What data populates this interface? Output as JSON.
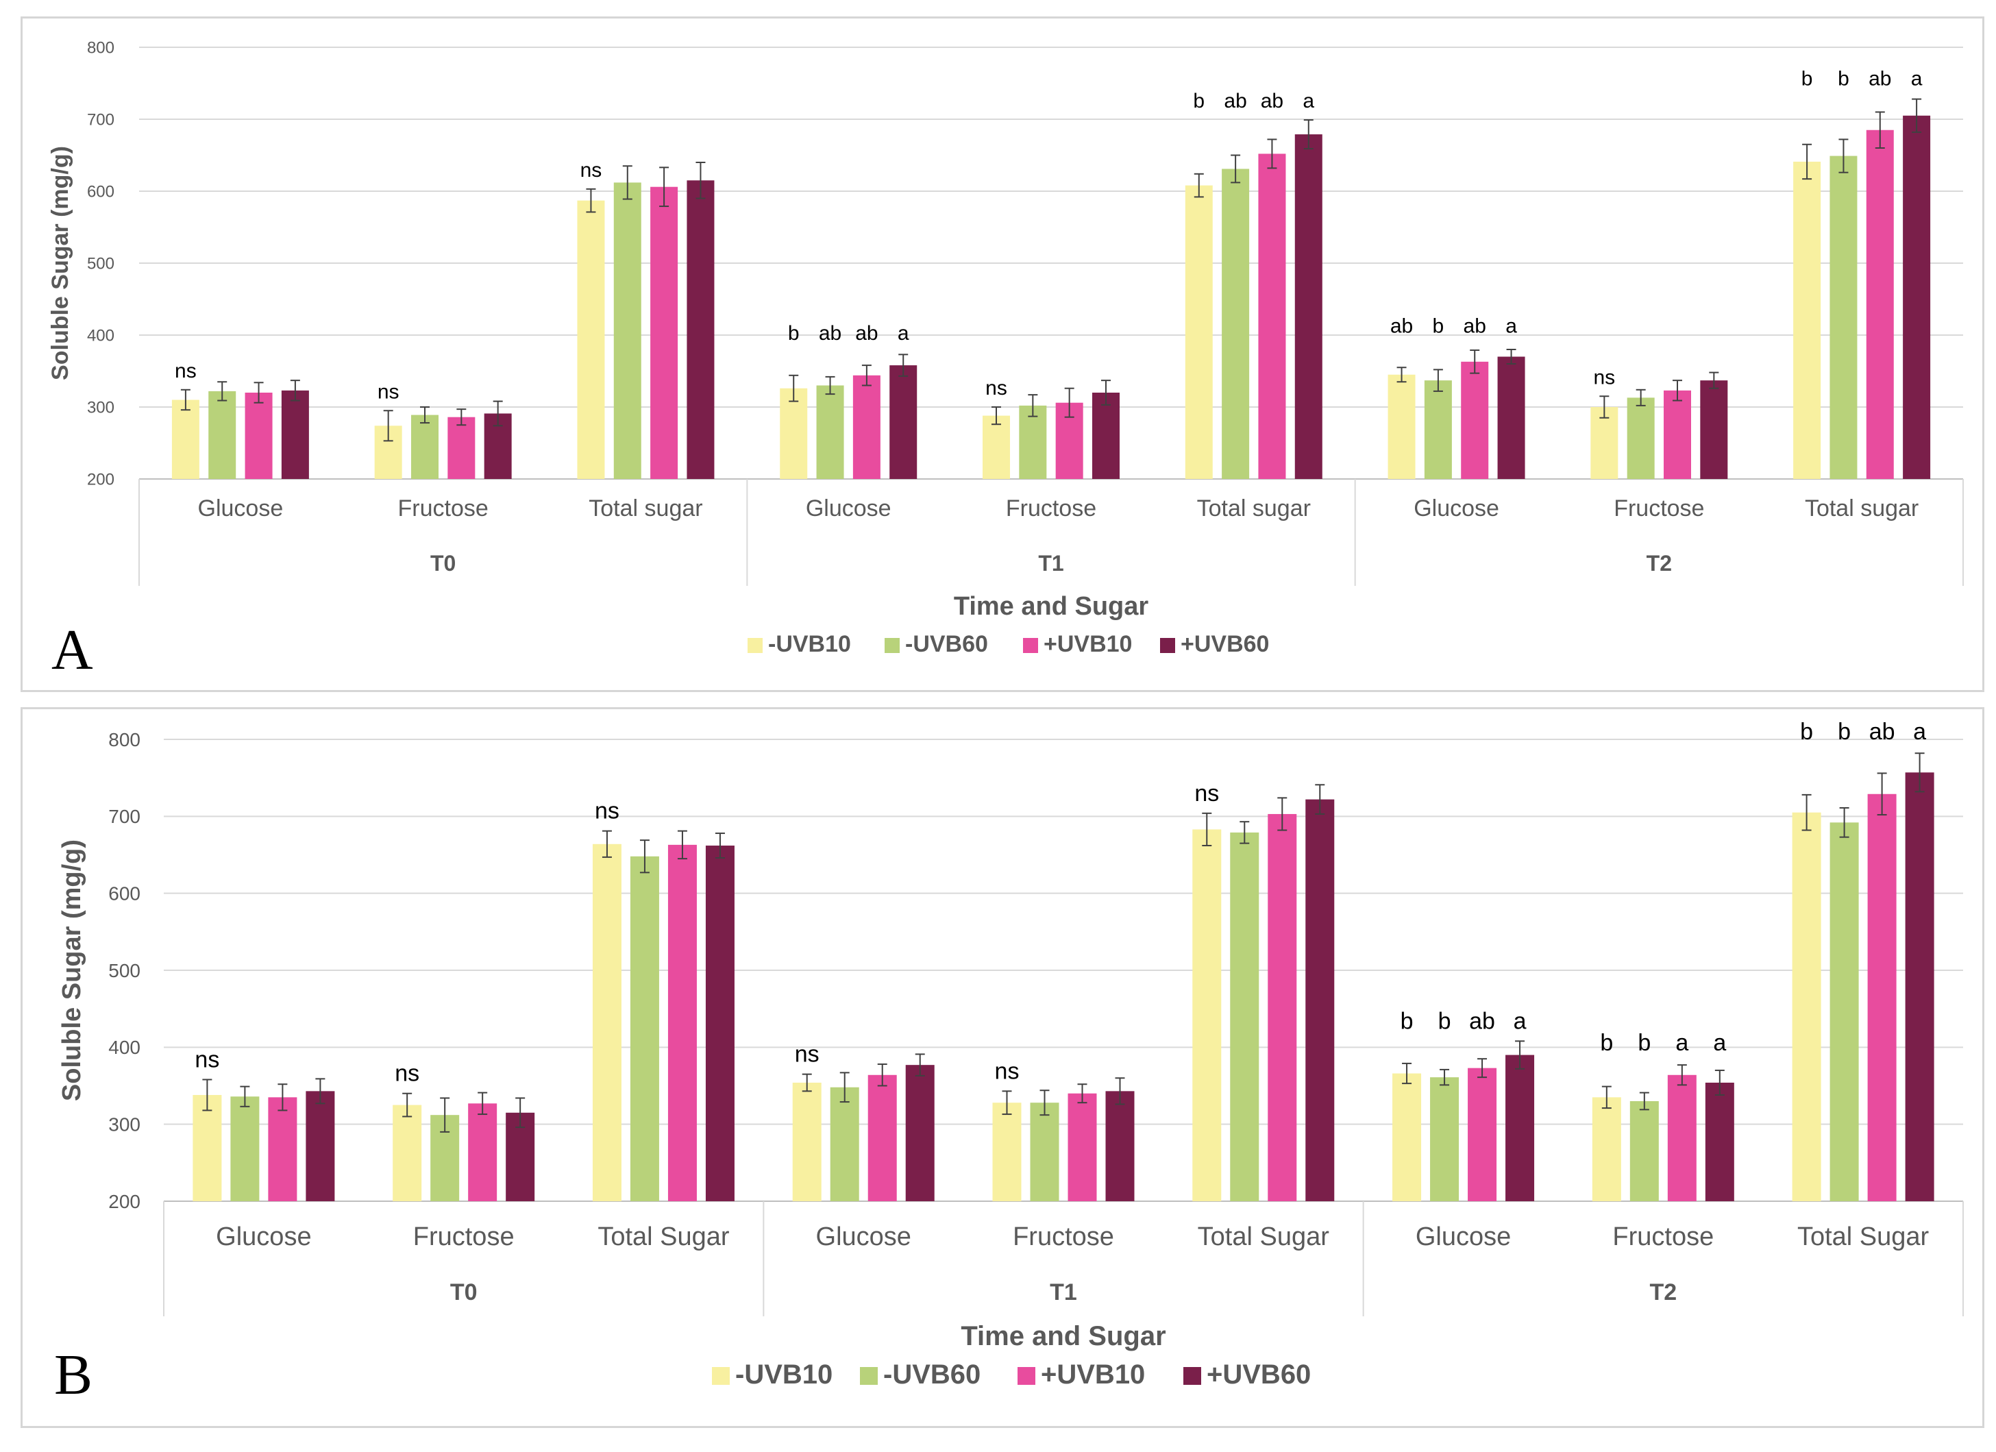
{
  "legend_colors": {
    "-UVB10": "#f8f0a0",
    "-UVB60": "#b8d27a",
    "+UVB10": "#e84c9e",
    "+UVB60": "#7a1f4a"
  },
  "chart_data": [
    {
      "panel_label": "A",
      "type": "bar",
      "ylabel": "Soluble Sugar (mg/g)",
      "xlabel": "Time and Sugar",
      "ylim": [
        200,
        800
      ],
      "yticks": [
        200,
        300,
        400,
        500,
        600,
        700,
        800
      ],
      "grid": true,
      "legend_position": "bottom",
      "series_names": [
        "-UVB10",
        "-UVB60",
        "+UVB10",
        "+UVB60"
      ],
      "groups": [
        {
          "label": "T0",
          "categories": [
            {
              "label": "Glucose",
              "values": [
                310,
                322,
                320,
                323
              ],
              "errors": [
                14,
                13,
                14,
                14
              ],
              "letters": [
                "ns"
              ]
            },
            {
              "label": "Fructose",
              "values": [
                274,
                289,
                286,
                291
              ],
              "errors": [
                21,
                11,
                11,
                17
              ],
              "letters": [
                "ns"
              ]
            },
            {
              "label": "Total sugar",
              "values": [
                587,
                612,
                606,
                615
              ],
              "errors": [
                16,
                23,
                27,
                25
              ],
              "letters": [
                "ns"
              ]
            }
          ]
        },
        {
          "label": "T1",
          "categories": [
            {
              "label": "Glucose",
              "values": [
                326,
                330,
                344,
                358
              ],
              "errors": [
                18,
                12,
                14,
                15
              ],
              "letters": [
                "b",
                "ab",
                "ab",
                "a"
              ]
            },
            {
              "label": "Fructose",
              "values": [
                288,
                302,
                306,
                320
              ],
              "errors": [
                12,
                15,
                20,
                17
              ],
              "letters": [
                "ns"
              ]
            },
            {
              "label": "Total sugar",
              "values": [
                608,
                631,
                652,
                679
              ],
              "errors": [
                16,
                19,
                20,
                20
              ],
              "letters": [
                "b",
                "ab",
                "ab",
                "a"
              ]
            }
          ]
        },
        {
          "label": "T2",
          "categories": [
            {
              "label": "Glucose",
              "values": [
                345,
                337,
                363,
                370
              ],
              "errors": [
                10,
                15,
                16,
                10
              ],
              "letters": [
                "ab",
                "b",
                "ab",
                "a"
              ]
            },
            {
              "label": "Fructose",
              "values": [
                300,
                313,
                323,
                337
              ],
              "errors": [
                15,
                11,
                14,
                11
              ],
              "letters": [
                "ns"
              ]
            },
            {
              "label": "Total sugar",
              "values": [
                641,
                649,
                685,
                705
              ],
              "errors": [
                24,
                23,
                25,
                23
              ],
              "letters": [
                "b",
                "b",
                "ab",
                "a"
              ]
            }
          ]
        }
      ]
    },
    {
      "panel_label": "B",
      "type": "bar",
      "ylabel": "Soluble Sugar (mg/g)",
      "xlabel": "Time and Sugar",
      "ylim": [
        200,
        800
      ],
      "yticks": [
        200,
        300,
        400,
        500,
        600,
        700,
        800
      ],
      "grid": true,
      "legend_position": "bottom",
      "series_names": [
        "-UVB10",
        "-UVB60",
        "+UVB10",
        "+UVB60"
      ],
      "groups": [
        {
          "label": "T0",
          "categories": [
            {
              "label": "Glucose",
              "values": [
                338,
                336,
                335,
                343
              ],
              "errors": [
                20,
                13,
                17,
                16
              ],
              "letters": [
                "ns"
              ]
            },
            {
              "label": "Fructose",
              "values": [
                325,
                312,
                327,
                315
              ],
              "errors": [
                15,
                22,
                14,
                19
              ],
              "letters": [
                "ns"
              ]
            },
            {
              "label": "Total Sugar",
              "values": [
                664,
                648,
                663,
                662
              ],
              "errors": [
                17,
                21,
                18,
                16
              ],
              "letters": [
                "ns"
              ]
            }
          ]
        },
        {
          "label": "T1",
          "categories": [
            {
              "label": "Glucose",
              "values": [
                354,
                348,
                364,
                377
              ],
              "errors": [
                11,
                19,
                14,
                14
              ],
              "letters": [
                "ns"
              ]
            },
            {
              "label": "Fructose",
              "values": [
                328,
                328,
                340,
                343
              ],
              "errors": [
                15,
                16,
                12,
                17
              ],
              "letters": [
                "ns"
              ]
            },
            {
              "label": "Total Sugar",
              "values": [
                683,
                679,
                703,
                722
              ],
              "errors": [
                21,
                14,
                21,
                19
              ],
              "letters": [
                "ns"
              ]
            }
          ]
        },
        {
          "label": "T2",
          "categories": [
            {
              "label": "Glucose",
              "values": [
                366,
                361,
                373,
                390
              ],
              "errors": [
                13,
                10,
                12,
                18
              ],
              "letters": [
                "b",
                "b",
                "ab",
                "a"
              ]
            },
            {
              "label": "Fructose",
              "values": [
                335,
                330,
                364,
                354
              ],
              "errors": [
                14,
                11,
                13,
                16
              ],
              "letters": [
                "b",
                "b",
                "a",
                "a"
              ]
            },
            {
              "label": "Total Sugar",
              "values": [
                705,
                692,
                729,
                757
              ],
              "errors": [
                23,
                19,
                27,
                25
              ],
              "letters": [
                "b",
                "b",
                "ab",
                "a"
              ]
            }
          ]
        }
      ]
    }
  ]
}
